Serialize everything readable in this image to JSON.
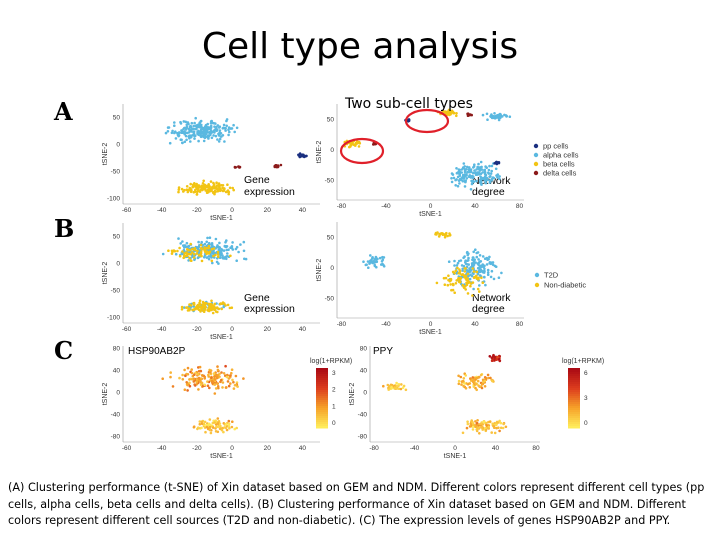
{
  "slide": {
    "title": "Cell type analysis",
    "annotation": "Two sub-cell types",
    "caption": "(A) Clustering performance (t-SNE) of Xin dataset based on GEM and NDM. Different colors represent different cell types (pp cells, alpha cells, beta cells and delta cells). (B) Clustering performance of Xin dataset based on GEM and NDM. Different colors represent different cell sources (T2D and non-diabetic). (C) The expression levels of genes HSP90AB2P and PPY."
  },
  "panels": {
    "A": "A",
    "B": "B",
    "C": "C"
  },
  "axes": {
    "xlabel": "tSNE-1",
    "ylabel": "tSNE-2"
  },
  "labels": {
    "gene_expression_1": "Gene",
    "gene_expression_2": "expression",
    "network_degree_1": "Network",
    "network_degree_2": "degree"
  },
  "legend_A": [
    {
      "label": "pp cells",
      "color": "#1a2f80"
    },
    {
      "label": "alpha cells",
      "color": "#5ab8e0"
    },
    {
      "label": "beta cells",
      "color": "#f2c414"
    },
    {
      "label": "delta cells",
      "color": "#8b1a1a"
    }
  ],
  "legend_B": [
    {
      "label": "T2D",
      "color": "#5ab8e0"
    },
    {
      "label": "Non-diabetic",
      "color": "#f2c414"
    }
  ],
  "heatmaps": {
    "left": {
      "gene": "HSP90AB2P",
      "colorbar_title": "log(1+RPKM)",
      "ticks": [
        "3",
        "2",
        "1",
        "0"
      ]
    },
    "right": {
      "gene": "PPY",
      "colorbar_title": "log(1+RPKM)",
      "ticks": [
        "6",
        "3",
        "0"
      ]
    }
  },
  "chart_data": [
    {
      "type": "scatter",
      "panel": "A",
      "subplot": "Gene expression",
      "xlabel": "tSNE-1",
      "ylabel": "tSNE-2",
      "xticks": [
        -60,
        -40,
        -20,
        0,
        20,
        40
      ],
      "yticks": [
        50,
        0,
        -50,
        -100
      ],
      "xlim": [
        -62,
        50
      ],
      "ylim": [
        -110,
        75
      ],
      "series": [
        {
          "name": "alpha cells",
          "color": "#5ab8e0",
          "clusters": [
            {
              "cx": -18,
              "cy": 25,
              "rx": 26,
              "ry": 28,
              "n": 230
            }
          ]
        },
        {
          "name": "beta cells",
          "color": "#f2c414",
          "clusters": [
            {
              "cx": -15,
              "cy": -80,
              "rx": 20,
              "ry": 16,
              "n": 150
            }
          ]
        },
        {
          "name": "delta cells",
          "color": "#8b1a1a",
          "clusters": [
            {
              "cx": 25,
              "cy": -40,
              "rx": 3,
              "ry": 3,
              "n": 18
            },
            {
              "cx": 4,
              "cy": -42,
              "rx": 3,
              "ry": 2,
              "n": 10
            }
          ]
        },
        {
          "name": "pp cells",
          "color": "#1a2f80",
          "clusters": [
            {
              "cx": 40,
              "cy": -20,
              "rx": 3,
              "ry": 4,
              "n": 18
            }
          ]
        }
      ]
    },
    {
      "type": "scatter",
      "panel": "A",
      "subplot": "Network degree",
      "xlabel": "tSNE-1",
      "ylabel": "tSNE-2",
      "xticks": [
        -80,
        -40,
        0,
        40,
        80
      ],
      "yticks": [
        50,
        0,
        -50
      ],
      "xlim": [
        -84,
        84
      ],
      "ylim": [
        -82,
        75
      ],
      "series": [
        {
          "name": "alpha cells",
          "color": "#5ab8e0",
          "clusters": [
            {
              "cx": 40,
              "cy": -40,
              "rx": 30,
              "ry": 28,
              "n": 170
            },
            {
              "cx": 60,
              "cy": 55,
              "rx": 14,
              "ry": 8,
              "n": 40
            }
          ]
        },
        {
          "name": "beta cells",
          "color": "#f2c414",
          "clusters": [
            {
              "cx": 15,
              "cy": 60,
              "rx": 12,
              "ry": 6,
              "n": 40
            },
            {
              "cx": -70,
              "cy": 10,
              "rx": 13,
              "ry": 7,
              "n": 40
            }
          ]
        },
        {
          "name": "delta cells",
          "color": "#8b1a1a",
          "clusters": [
            {
              "cx": 35,
              "cy": 58,
              "rx": 4,
              "ry": 3,
              "n": 12
            },
            {
              "cx": -50,
              "cy": 10,
              "rx": 3,
              "ry": 3,
              "n": 10
            }
          ]
        },
        {
          "name": "pp cells",
          "color": "#1a2f80",
          "clusters": [
            {
              "cx": -20,
              "cy": 48,
              "rx": 3,
              "ry": 3,
              "n": 10
            },
            {
              "cx": 60,
              "cy": -22,
              "rx": 4,
              "ry": 3,
              "n": 12
            }
          ]
        }
      ]
    },
    {
      "type": "scatter",
      "panel": "B",
      "subplot": "Gene expression",
      "xlabel": "tSNE-1",
      "ylabel": "tSNE-2",
      "xticks": [
        -60,
        -40,
        -20,
        0,
        20,
        40
      ],
      "yticks": [
        50,
        0,
        -50,
        -100
      ],
      "xlim": [
        -62,
        50
      ],
      "ylim": [
        -110,
        75
      ],
      "series": [
        {
          "name": "T2D",
          "color": "#5ab8e0",
          "clusters": [
            {
              "cx": -15,
              "cy": 25,
              "rx": 28,
              "ry": 28,
              "n": 200
            },
            {
              "cx": -15,
              "cy": -80,
              "rx": 18,
              "ry": 12,
              "n": 40
            }
          ]
        },
        {
          "name": "Non-diabetic",
          "color": "#f2c414",
          "clusters": [
            {
              "cx": -20,
              "cy": 20,
              "rx": 24,
              "ry": 24,
              "n": 70
            },
            {
              "cx": -15,
              "cy": -80,
              "rx": 18,
              "ry": 14,
              "n": 100
            }
          ]
        }
      ]
    },
    {
      "type": "scatter",
      "panel": "B",
      "subplot": "Network degree",
      "xlabel": "tSNE-1",
      "ylabel": "tSNE-2",
      "xticks": [
        -80,
        -40,
        0,
        40,
        80
      ],
      "yticks": [
        50,
        0,
        -50
      ],
      "xlim": [
        -84,
        84
      ],
      "ylim": [
        -82,
        75
      ],
      "series": [
        {
          "name": "T2D",
          "color": "#5ab8e0",
          "clusters": [
            {
              "cx": 40,
              "cy": 0,
              "rx": 30,
              "ry": 40,
              "n": 170
            },
            {
              "cx": -50,
              "cy": 10,
              "rx": 15,
              "ry": 12,
              "n": 40
            }
          ]
        },
        {
          "name": "Non-diabetic",
          "color": "#f2c414",
          "clusters": [
            {
              "cx": 30,
              "cy": -20,
              "rx": 28,
              "ry": 30,
              "n": 80
            },
            {
              "cx": 10,
              "cy": 55,
              "rx": 10,
              "ry": 6,
              "n": 20
            }
          ]
        }
      ]
    },
    {
      "type": "scatter",
      "panel": "C",
      "subplot": "HSP90AB2P",
      "xlabel": "tSNE-1",
      "ylabel": "tSNE-2",
      "xticks": [
        -60,
        -40,
        -20,
        0,
        20,
        40
      ],
      "yticks": [
        80,
        40,
        0,
        -40,
        -80
      ],
      "xlim": [
        -62,
        50
      ],
      "ylim": [
        -90,
        85
      ],
      "colorbar": {
        "min": 0,
        "max": 3.5
      },
      "series": [
        {
          "name": "HSP90AB2P",
          "clusters": [
            {
              "cx": -15,
              "cy": 25,
              "rx": 26,
              "ry": 28,
              "n": 170,
              "level": 1.2
            },
            {
              "cx": -10,
              "cy": -60,
              "rx": 18,
              "ry": 18,
              "n": 80,
              "level": 0.6
            }
          ]
        }
      ]
    },
    {
      "type": "scatter",
      "panel": "C",
      "subplot": "PPY",
      "xlabel": "tSNE-1",
      "ylabel": "tSNE-2",
      "xticks": [
        -80,
        -40,
        0,
        40,
        80
      ],
      "yticks": [
        80,
        40,
        0,
        -40,
        -80
      ],
      "xlim": [
        -84,
        84
      ],
      "ylim": [
        -90,
        85
      ],
      "colorbar": {
        "min": 0,
        "max": 7
      },
      "series": [
        {
          "name": "PPY",
          "clusters": [
            {
              "cx": 40,
              "cy": 62,
              "rx": 10,
              "ry": 8,
              "n": 40,
              "level": 6
            },
            {
              "cx": 20,
              "cy": 20,
              "rx": 25,
              "ry": 20,
              "n": 80,
              "level": 2
            },
            {
              "cx": 30,
              "cy": -60,
              "rx": 30,
              "ry": 18,
              "n": 90,
              "level": 1.5
            },
            {
              "cx": -60,
              "cy": 10,
              "rx": 14,
              "ry": 10,
              "n": 40,
              "level": 1
            }
          ]
        }
      ]
    }
  ]
}
